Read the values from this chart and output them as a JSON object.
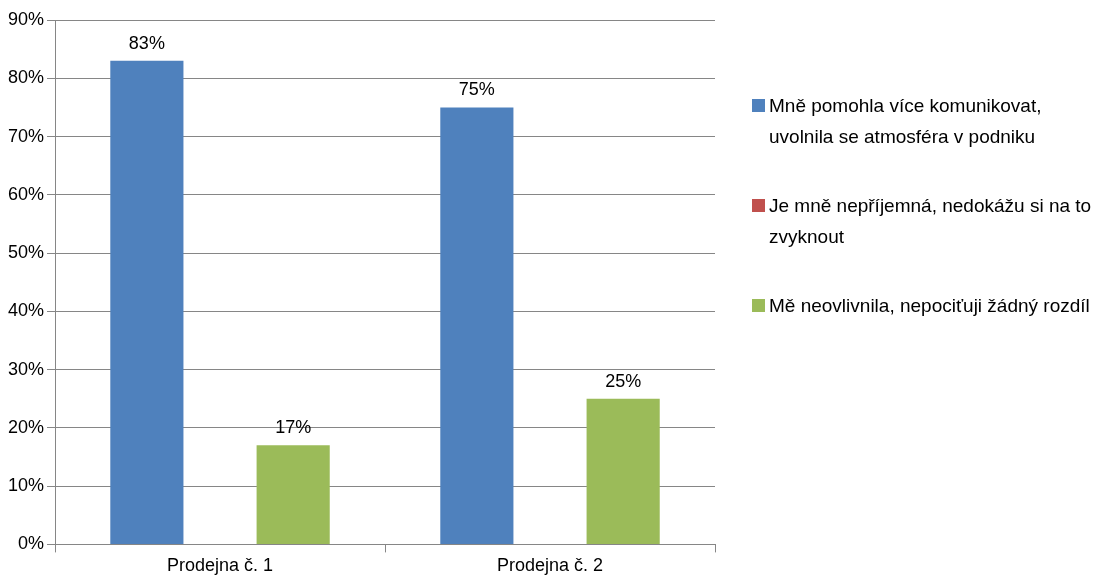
{
  "chart_data": {
    "type": "bar",
    "categories": [
      "Prodejna č. 1",
      "Prodejna č. 2"
    ],
    "series": [
      {
        "name": "Mně pomohla více komunikovat, uvolnila se atmosféra v podniku",
        "color": "#4f81bd",
        "values": [
          83,
          75
        ],
        "value_labels": [
          "83%",
          "75%"
        ]
      },
      {
        "name": "Je mně nepříjemná, nedokážu si na to zvyknout",
        "color": "#c0504d",
        "values": [
          0,
          0
        ],
        "value_labels": [
          null,
          null
        ]
      },
      {
        "name": "Mě neovlivnila, nepociťuji žádný rozdíl",
        "color": "#9bbb59",
        "values": [
          17,
          25
        ],
        "value_labels": [
          "17%",
          "25%"
        ]
      }
    ],
    "ylim": [
      0,
      90
    ],
    "yticks": [
      {
        "value": 0,
        "label": "0%"
      },
      {
        "value": 10,
        "label": "10%"
      },
      {
        "value": 20,
        "label": "20%"
      },
      {
        "value": 30,
        "label": "30%"
      },
      {
        "value": 40,
        "label": "40%"
      },
      {
        "value": 50,
        "label": "50%"
      },
      {
        "value": 60,
        "label": "60%"
      },
      {
        "value": 70,
        "label": "70%"
      },
      {
        "value": 80,
        "label": "80%"
      },
      {
        "value": 90,
        "label": "90%"
      }
    ],
    "grid": "y",
    "legend": "right"
  }
}
